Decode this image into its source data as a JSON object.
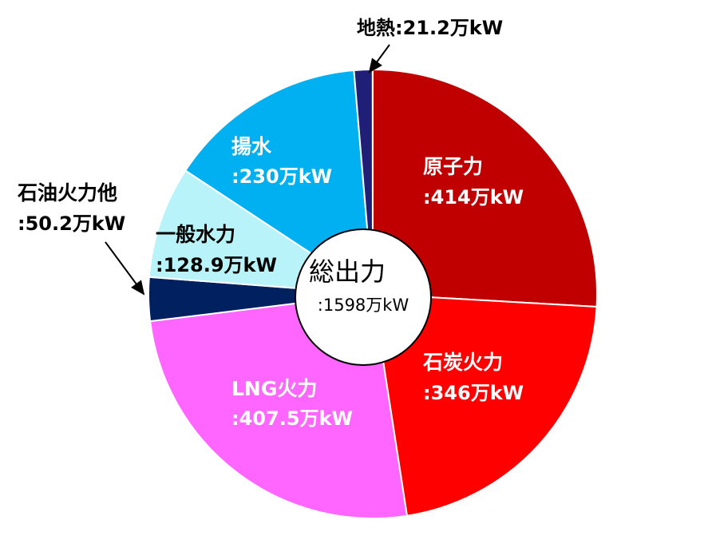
{
  "chart_data": {
    "type": "pie",
    "categories": [
      "原子力",
      "石炭火力",
      "LNG火力",
      "石油火力他",
      "一般水力",
      "揚水",
      "地熱"
    ],
    "values": [
      414,
      346,
      407.5,
      50.2,
      128.9,
      230,
      21.2
    ],
    "value_labels": [
      ":414万kW",
      ":346万kW",
      ":407.5万kW",
      ":50.2万kW",
      ":128.9万kW",
      ":230万kW",
      ":21.2万kW"
    ],
    "colors": [
      "#c00000",
      "#ff0000",
      "#ff66ff",
      "#002060",
      "#b7f3f9",
      "#00b0f0",
      "#1f1f78"
    ],
    "center_title": "総出力",
    "total": 1598,
    "total_label": ":1598万kW"
  }
}
